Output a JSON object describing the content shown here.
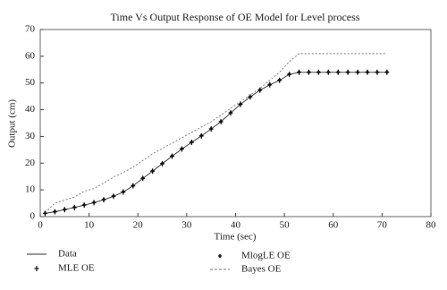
{
  "chart_data": {
    "type": "line",
    "title": "Time Vs Output Response of OE Model for Level process",
    "x_label": "Time (sec)",
    "y_label": "Output (cm)",
    "x": [
      1,
      3,
      5,
      7,
      9,
      11,
      13,
      15,
      17,
      19,
      21,
      23,
      25,
      27,
      29,
      31,
      33,
      35,
      37,
      39,
      41,
      43,
      45,
      47,
      49,
      51,
      53,
      55,
      57,
      59,
      61,
      63,
      65,
      67,
      69,
      71
    ],
    "series": [
      {
        "name": "Data",
        "color": "#333333",
        "style": "solid",
        "values": [
          1.2,
          1.8,
          2.6,
          3.4,
          4.3,
          5.2,
          6.3,
          7.6,
          9.2,
          11.5,
          14.3,
          17,
          19.8,
          22.6,
          25.3,
          27.8,
          30.2,
          32.8,
          35.5,
          38.8,
          42,
          44.8,
          47.3,
          49.3,
          51,
          53.2,
          54,
          54,
          54,
          54,
          54,
          54,
          54,
          54,
          54,
          54
        ]
      },
      {
        "name": "MLE OE",
        "color": "#111111",
        "style": "plus",
        "values": [
          1.2,
          1.8,
          2.6,
          3.4,
          4.3,
          5.2,
          6.3,
          7.6,
          9.2,
          11.5,
          14.3,
          17,
          19.8,
          22.6,
          25.3,
          27.8,
          30.2,
          32.8,
          35.5,
          38.8,
          42,
          44.8,
          47.3,
          49.3,
          51,
          53.2,
          54,
          54,
          54,
          54,
          54,
          54,
          54,
          54,
          54,
          54
        ]
      },
      {
        "name": "MlogLE OE",
        "color": "#111111",
        "style": "diamond",
        "values": [
          1.3,
          1.9,
          2.7,
          3.5,
          4.4,
          5.3,
          6.4,
          7.7,
          9.3,
          11.6,
          14.4,
          17.1,
          19.9,
          22.7,
          25.4,
          27.9,
          30.3,
          32.9,
          35.6,
          38.9,
          42.1,
          44.9,
          47.4,
          49.4,
          51.1,
          53.3,
          54.1,
          54.1,
          54.1,
          54.1,
          54.1,
          54.1,
          54.1,
          54.1,
          54.1,
          54.1
        ]
      },
      {
        "name": "Bayes OE",
        "color": "#777777",
        "style": "dashed",
        "values": [
          1.5,
          5,
          6.2,
          7.3,
          9.5,
          10.5,
          12.5,
          14.8,
          16.5,
          18.5,
          21,
          23.5,
          25.5,
          27.5,
          29.5,
          31.5,
          33.5,
          35.5,
          38,
          40.5,
          43,
          45.5,
          48,
          51,
          54,
          58,
          61,
          61,
          61,
          61,
          61,
          61,
          61,
          61,
          61,
          61
        ]
      }
    ],
    "xlim": [
      0,
      80
    ],
    "xticks": [
      0,
      10,
      20,
      30,
      40,
      50,
      60,
      70,
      80
    ],
    "ylim": [
      0,
      70
    ],
    "yticks": [
      0,
      10,
      20,
      30,
      40,
      50,
      60,
      70
    ],
    "grid": false
  }
}
